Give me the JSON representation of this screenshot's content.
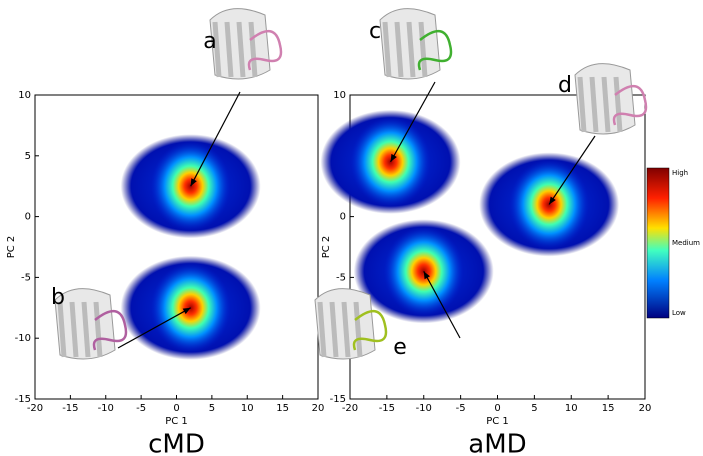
{
  "chart_data": [
    {
      "type": "density",
      "title": "cMD",
      "xlabel": "PC 1",
      "ylabel": "PC 2",
      "xlim": [
        -20,
        20
      ],
      "ylim": [
        -15,
        10
      ],
      "xticks": [
        -20,
        -15,
        -10,
        -5,
        0,
        5,
        10,
        15,
        20
      ],
      "yticks": [
        -15,
        -10,
        -5,
        0,
        5,
        10
      ],
      "x": [
        2,
        2
      ],
      "values": [
        2.5,
        -7.5
      ],
      "annotations": [
        "a",
        "b"
      ]
    },
    {
      "type": "density",
      "title": "aMD",
      "xlabel": "PC 1",
      "ylabel": "PC 2",
      "xlim": [
        -20,
        20
      ],
      "ylim": [
        -15,
        10
      ],
      "xticks": [
        -20,
        -15,
        -10,
        -5,
        0,
        5,
        10,
        15,
        20
      ],
      "yticks": [
        -15,
        -10,
        -5,
        0,
        5,
        10
      ],
      "x": [
        -14.5,
        -10,
        7
      ],
      "values": [
        4.5,
        -4.5,
        1
      ],
      "annotations": [
        "c",
        "e",
        "d"
      ],
      "colorbar": [
        "High",
        "Medium",
        "Low"
      ]
    }
  ]
}
